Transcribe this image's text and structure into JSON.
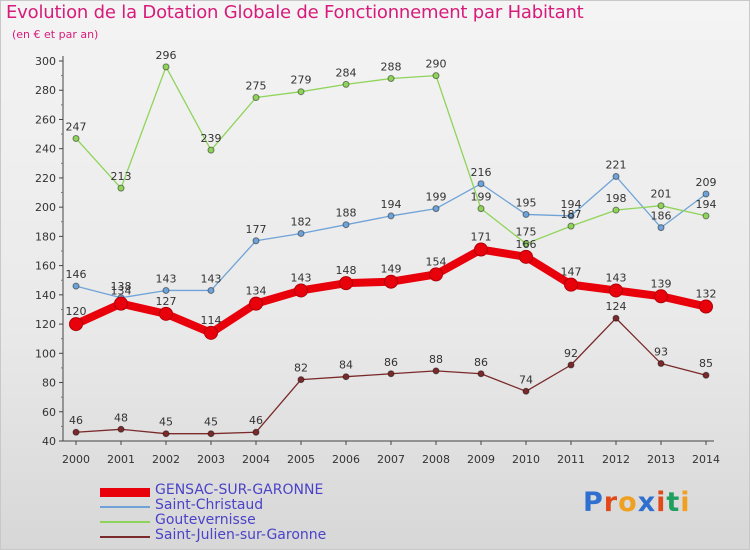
{
  "header": {
    "title": "Evolution de la Dotation Globale de Fonctionnement par Habitant",
    "subtitle": "(en € et par an)"
  },
  "logo": {
    "text": "Proxiti",
    "colors": [
      "#2f6fd0",
      "#e04a1a",
      "#f0a020",
      "#2f6fd0",
      "#e04a1a",
      "#20a060",
      "#f0a020"
    ]
  },
  "chart_data": {
    "type": "line",
    "title": "Evolution de la Dotation Globale de Fonctionnement par Habitant",
    "ylabel": "(en € et par an)",
    "xlabel": "",
    "ylim": [
      40,
      300
    ],
    "yticks": [
      40,
      60,
      80,
      100,
      120,
      140,
      160,
      180,
      200,
      220,
      240,
      260,
      280,
      300
    ],
    "categories": [
      "2000",
      "2001",
      "2002",
      "2003",
      "2004",
      "2005",
      "2006",
      "2007",
      "2008",
      "2009",
      "2010",
      "2011",
      "2012",
      "2013",
      "2014"
    ],
    "series": [
      {
        "name": "GENSAC-SUR-GARONNE",
        "color": "#e8000b",
        "highlight": true,
        "values": [
          120,
          134,
          127,
          114,
          134,
          143,
          148,
          149,
          154,
          171,
          166,
          147,
          143,
          139,
          132
        ]
      },
      {
        "name": "Saint-Christaud",
        "color": "#6fa3d8",
        "values": [
          146,
          138,
          143,
          143,
          177,
          182,
          188,
          194,
          199,
          216,
          195,
          194,
          221,
          186,
          209
        ]
      },
      {
        "name": "Goutevernisse",
        "color": "#8fd45a",
        "values": [
          247,
          213,
          296,
          239,
          275,
          279,
          284,
          288,
          290,
          199,
          175,
          187,
          198,
          201,
          194
        ]
      },
      {
        "name": "Saint-Julien-sur-Garonne",
        "color": "#7a2a2a",
        "values": [
          46,
          48,
          45,
          45,
          46,
          82,
          84,
          86,
          88,
          86,
          74,
          92,
          124,
          93,
          85
        ]
      }
    ],
    "legend_position": "bottom-left",
    "grid": false
  }
}
